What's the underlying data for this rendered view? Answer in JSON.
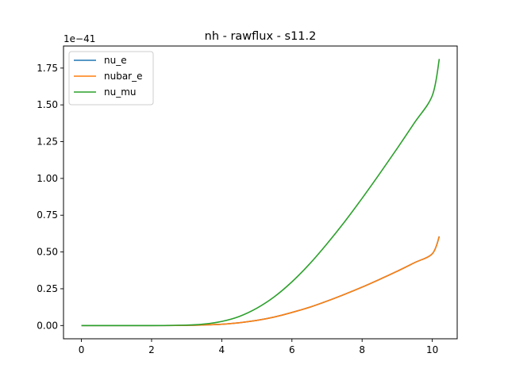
{
  "chart_data": {
    "type": "line",
    "title": "nh - rawflux - s11.2",
    "xlabel": "",
    "ylabel": "",
    "y_offset_label": "1e−41",
    "xlim": [
      -0.51,
      10.71
    ],
    "ylim": [
      -0.09,
      1.9
    ],
    "x_ticks": [
      0,
      2,
      4,
      6,
      8,
      10
    ],
    "x_tick_labels": [
      "0",
      "2",
      "4",
      "6",
      "8",
      "10"
    ],
    "y_ticks": [
      0.0,
      0.25,
      0.5,
      0.75,
      1.0,
      1.25,
      1.5,
      1.75
    ],
    "y_tick_labels": [
      "0.00",
      "0.25",
      "0.50",
      "0.75",
      "1.00",
      "1.25",
      "1.50",
      "1.75"
    ],
    "grid": false,
    "legend_position": "top-left",
    "series": [
      {
        "name": "nu_e",
        "color": "#1f77b4",
        "x": [
          0,
          1,
          2,
          3,
          3.5,
          4,
          4.5,
          5,
          5.5,
          6,
          6.5,
          7,
          7.5,
          8,
          8.5,
          9,
          9.5,
          10,
          10.2
        ],
        "y": [
          0,
          0,
          0,
          0.001,
          0.004,
          0.009,
          0.019,
          0.035,
          0.058,
          0.089,
          0.124,
          0.166,
          0.212,
          0.261,
          0.314,
          0.369,
          0.428,
          0.488,
          0.606
        ]
      },
      {
        "name": "nubar_e",
        "color": "#ff7f0e",
        "x": [
          0,
          1,
          2,
          3,
          3.5,
          4,
          4.5,
          5,
          5.5,
          6,
          6.5,
          7,
          7.5,
          8,
          8.5,
          9,
          9.5,
          10,
          10.2
        ],
        "y": [
          0,
          0,
          0,
          0.001,
          0.004,
          0.009,
          0.019,
          0.035,
          0.058,
          0.089,
          0.124,
          0.166,
          0.212,
          0.261,
          0.314,
          0.369,
          0.428,
          0.488,
          0.606
        ]
      },
      {
        "name": "nu_mu",
        "color": "#2ca02c",
        "x": [
          0,
          1,
          2,
          3,
          3.5,
          4,
          4.5,
          5,
          5.5,
          6,
          6.5,
          7,
          7.5,
          8,
          8.5,
          9,
          9.5,
          10,
          10.2
        ],
        "y": [
          0,
          0,
          0,
          0.003,
          0.01,
          0.028,
          0.062,
          0.118,
          0.196,
          0.297,
          0.418,
          0.556,
          0.705,
          0.865,
          1.032,
          1.204,
          1.381,
          1.563,
          1.812
        ]
      }
    ]
  }
}
